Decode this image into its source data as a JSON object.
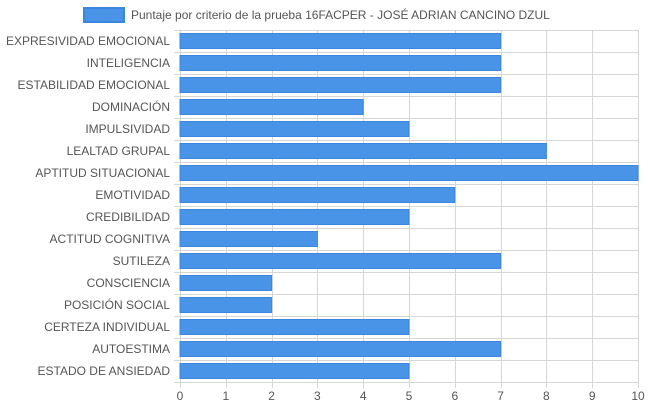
{
  "chart_data": {
    "type": "bar",
    "orientation": "horizontal",
    "categories": [
      "EXPRESIVIDAD EMOCIONAL",
      "INTELIGENCIA",
      "ESTABILIDAD EMOCIONAL",
      "DOMINACIÓN",
      "IMPULSIVIDAD",
      "LEALTAD GRUPAL",
      "APTITUD SITUACIONAL",
      "EMOTIVIDAD",
      "CREDIBILIDAD",
      "ACTITUD COGNITIVA",
      "SUTILEZA",
      "CONSCIENCIA",
      "POSICIÓN SOCIAL",
      "CERTEZA INDIVIDUAL",
      "AUTOESTIMA",
      "ESTADO DE ANSIEDAD"
    ],
    "series": [
      {
        "name": "Puntaje por criterio de la prueba 16FACPER - JOSÉ ADRIAN CANCINO DZUL",
        "values": [
          7,
          7,
          7,
          4,
          5,
          8,
          10,
          6,
          5,
          3,
          7,
          2,
          2,
          5,
          7,
          5
        ]
      }
    ],
    "xlim": [
      0,
      10
    ],
    "x_ticks": [
      "0",
      "1",
      "2",
      "3",
      "4",
      "5",
      "6",
      "7",
      "8",
      "9",
      "10"
    ],
    "grid": true,
    "legend_position": "top-center",
    "colors": {
      "bar_fill": "#4a94e8",
      "bar_stroke": "#3a86e0",
      "grid": "#d6d6d6",
      "axis_text": "#555555"
    }
  }
}
